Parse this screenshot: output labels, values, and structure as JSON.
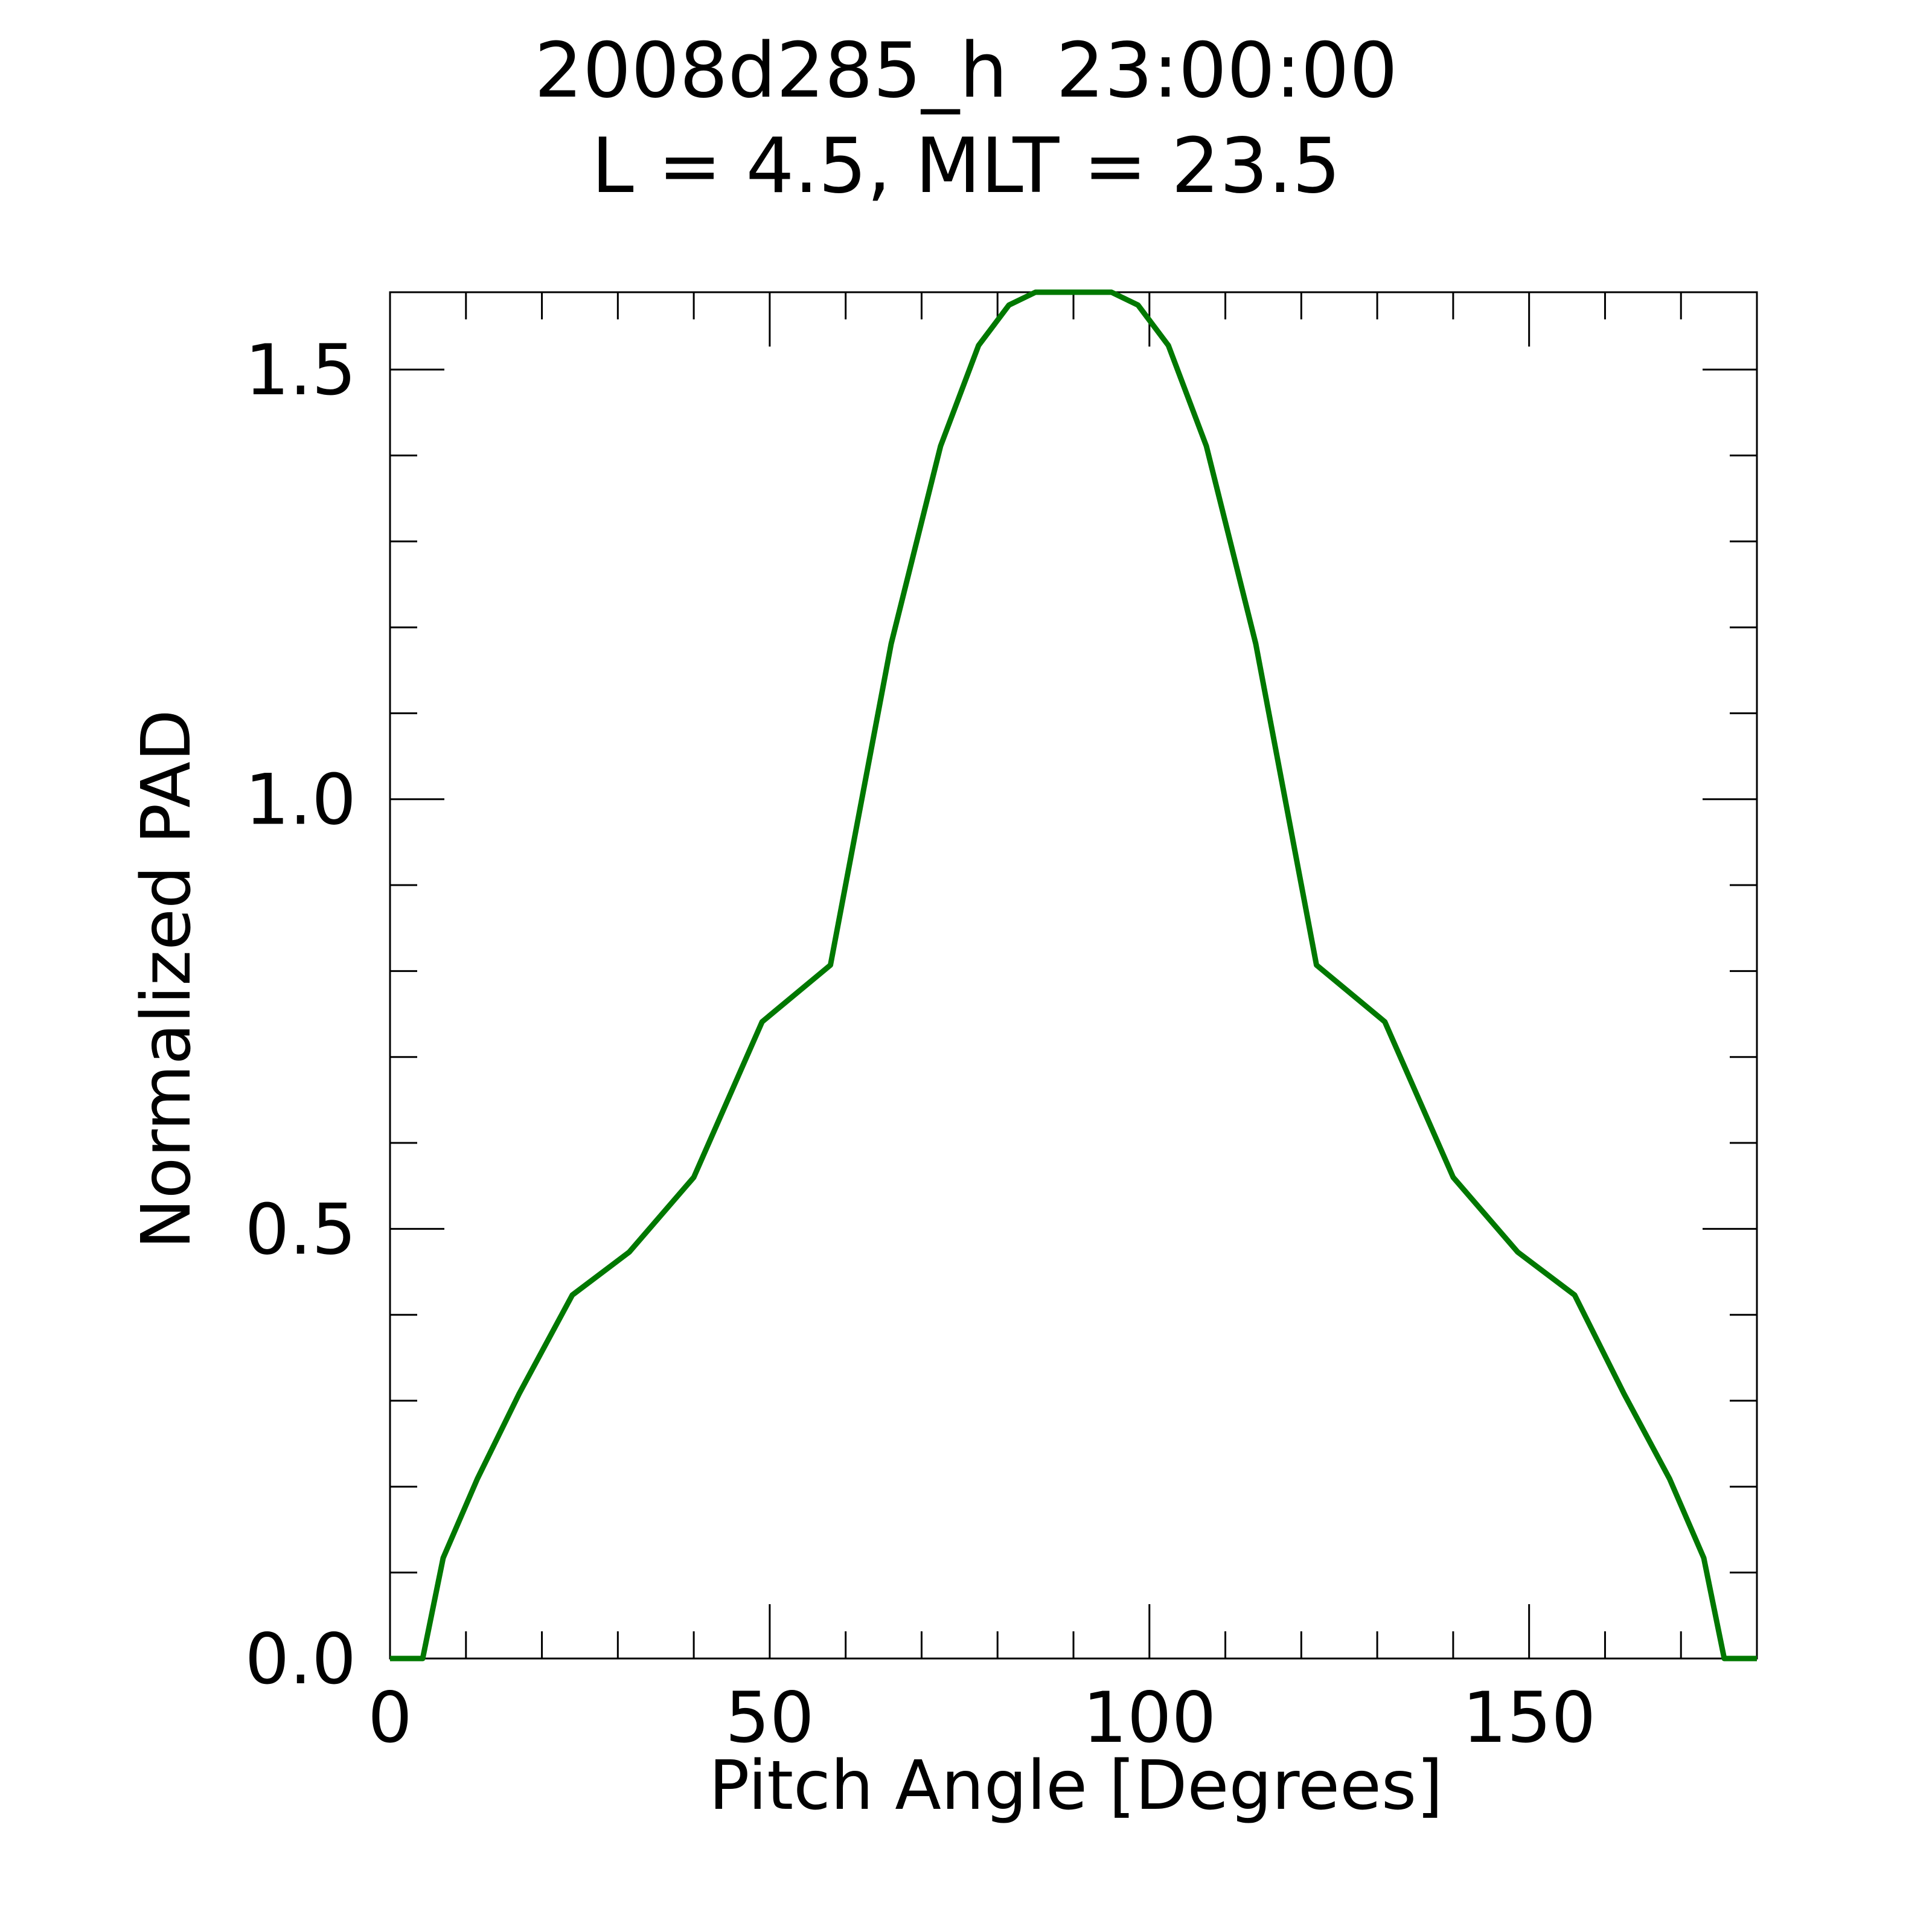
{
  "chart_data": {
    "type": "line",
    "title": "2008d285_h  23:00:00",
    "subtitle": "L = 4.5, MLT = 23.5",
    "xlabel": "Pitch Angle [Degrees]",
    "ylabel": "Normalized PAD",
    "xlim": [
      0,
      180
    ],
    "ylim": [
      0,
      1.59
    ],
    "xticks": [
      0,
      50,
      100,
      150
    ],
    "xtick_labels": [
      "0",
      "50",
      "100",
      "150"
    ],
    "x_minor_step": 10,
    "yticks": [
      0.0,
      0.5,
      1.0,
      1.5
    ],
    "ytick_labels": [
      "0.0",
      "0.5",
      "1.0",
      "1.5"
    ],
    "y_minor_step": 0.1,
    "grid": false,
    "legend": "none",
    "series": [
      {
        "color": "#007800",
        "x": [
          0,
          4.3,
          7,
          11.5,
          17,
          24,
          31.5,
          40,
          49,
          58,
          66,
          72.5,
          77.5,
          81.5,
          85,
          95,
          98.5,
          102.5,
          107.5,
          114,
          122,
          131,
          140,
          148.5,
          156,
          162.5,
          168.5,
          173,
          175.7,
          180
        ],
        "y": [
          0.0,
          0.0,
          0.117,
          0.209,
          0.308,
          0.423,
          0.473,
          0.56,
          0.741,
          0.807,
          1.181,
          1.411,
          1.528,
          1.575,
          1.59,
          1.59,
          1.575,
          1.528,
          1.411,
          1.181,
          0.807,
          0.741,
          0.56,
          0.473,
          0.423,
          0.308,
          0.209,
          0.117,
          0.0,
          0.0
        ]
      }
    ]
  }
}
